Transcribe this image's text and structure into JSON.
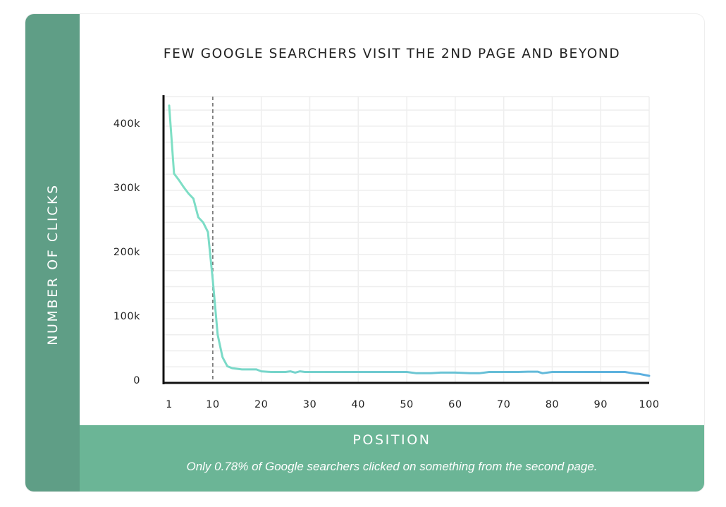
{
  "chart_data": {
    "type": "line",
    "title": "FEW GOOGLE SEARCHERS VISIT THE 2ND PAGE AND BEYOND",
    "xlabel": "POSITION",
    "ylabel": "NUMBER OF CLICKS",
    "caption": "Only 0.78% of Google searchers clicked on something from the second page.",
    "x_ticks": [
      "1",
      "10",
      "20",
      "30",
      "40",
      "50",
      "60",
      "70",
      "80",
      "90",
      "100"
    ],
    "y_ticks": [
      "0",
      "100k",
      "200k",
      "300k",
      "400k"
    ],
    "ylim": [
      0,
      446000
    ],
    "xlim": [
      1,
      100
    ],
    "grid": true,
    "reference_line": {
      "x": 10,
      "style": "dashed"
    },
    "series": [
      {
        "name": "Clicks",
        "color_start": "#7fe0c4",
        "color_end": "#5aaee0",
        "x": [
          1,
          2,
          3,
          4,
          5,
          6,
          7,
          8,
          9,
          10,
          11,
          12,
          13,
          14,
          15,
          16,
          17,
          18,
          19,
          20,
          22,
          25,
          26,
          27,
          28,
          29,
          30,
          35,
          40,
          45,
          50,
          52,
          55,
          57,
          60,
          63,
          65,
          67,
          70,
          73,
          75,
          77,
          78,
          80,
          85,
          90,
          95,
          97,
          98,
          100
        ],
        "values": [
          432000,
          326000,
          316000,
          305000,
          295000,
          287000,
          258000,
          250000,
          235000,
          160000,
          75000,
          40000,
          26000,
          23000,
          22000,
          21000,
          21000,
          21000,
          21000,
          18000,
          17000,
          17000,
          18000,
          16000,
          18000,
          17000,
          17000,
          17000,
          17000,
          17000,
          17000,
          15000,
          15000,
          16000,
          16000,
          15000,
          15000,
          17000,
          17000,
          17000,
          17500,
          17500,
          15000,
          17000,
          17000,
          17000,
          17000,
          14500,
          14000,
          11000
        ]
      }
    ]
  },
  "colors": {
    "sidebar": "#5f9e86",
    "banner": "#6bb596",
    "line_start": "#7fe0c4",
    "line_end": "#5aaee0",
    "grid": "#eeeeee",
    "axis": "#111111"
  }
}
